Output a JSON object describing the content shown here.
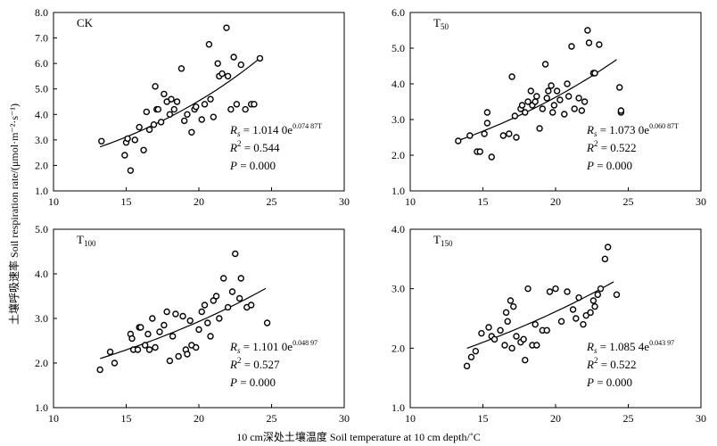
{
  "figure": {
    "ylabel": "土壤呼吸速率 Soil respiration rate/(μmol·m⁻²·s⁻¹)",
    "xlabel": "10 cm深处土壤温度 Soil temperature at 10 cm depth/˚C"
  },
  "chart_data": [
    {
      "type": "scatter",
      "panel": "CK",
      "label_main": "CK",
      "label_sub": "",
      "xlim": [
        10,
        30
      ],
      "ylim": [
        1.0,
        8.0
      ],
      "xticks": [
        10,
        15,
        20,
        25,
        30
      ],
      "yticks": [
        1.0,
        2.0,
        3.0,
        4.0,
        5.0,
        6.0,
        7.0,
        8.0
      ],
      "fit": {
        "a": 1.014,
        "b": 0.07487,
        "x_range": [
          13.2,
          24.2
        ]
      },
      "eq": {
        "coef": "1.014 0e",
        "exp": "0.074 87T",
        "r2": "0.544",
        "p": "0.000"
      },
      "x": [
        13.3,
        14.9,
        15.0,
        15.1,
        15.3,
        15.6,
        15.9,
        16.2,
        16.4,
        16.6,
        16.9,
        17.0,
        17.1,
        17.2,
        17.4,
        17.6,
        17.8,
        18.0,
        18.1,
        18.3,
        18.5,
        18.8,
        19.0,
        19.2,
        19.5,
        19.7,
        19.8,
        20.2,
        20.4,
        20.7,
        20.8,
        21.0,
        21.3,
        21.4,
        21.6,
        21.9,
        22.0,
        22.2,
        22.4,
        22.6,
        22.9,
        23.2,
        23.6,
        23.8,
        24.2
      ],
      "y": [
        2.95,
        2.4,
        2.9,
        3.05,
        1.8,
        3.0,
        3.5,
        2.6,
        4.1,
        3.4,
        3.6,
        5.1,
        4.2,
        4.2,
        3.7,
        4.8,
        4.5,
        4.0,
        4.6,
        4.2,
        4.5,
        5.8,
        3.75,
        4.0,
        3.3,
        4.2,
        4.3,
        3.8,
        4.4,
        6.75,
        4.6,
        3.9,
        6.0,
        5.5,
        5.6,
        7.4,
        5.5,
        4.2,
        6.25,
        4.4,
        5.95,
        4.2,
        4.4,
        4.4,
        6.2
      ]
    },
    {
      "type": "scatter",
      "panel": "T50",
      "label_main": "T",
      "label_sub": "50",
      "xlim": [
        10,
        30
      ],
      "ylim": [
        1.0,
        6.0
      ],
      "xticks": [
        10,
        15,
        20,
        25,
        30
      ],
      "yticks": [
        1.0,
        2.0,
        3.0,
        4.0,
        5.0,
        6.0
      ],
      "fit": {
        "a": 1.073,
        "b": 0.06087,
        "x_range": [
          13.2,
          24.2
        ]
      },
      "eq": {
        "coef": "1.073 0e",
        "exp": "0.060 87T",
        "r2": "0.522",
        "p": "0.000"
      },
      "x": [
        13.3,
        14.1,
        14.6,
        14.8,
        15.1,
        15.3,
        15.3,
        15.6,
        16.4,
        16.8,
        17.0,
        17.2,
        17.3,
        17.6,
        17.7,
        17.9,
        18.1,
        18.3,
        18.4,
        18.6,
        18.7,
        18.9,
        19.1,
        19.3,
        19.4,
        19.5,
        19.7,
        19.8,
        19.9,
        20.1,
        20.3,
        20.6,
        20.8,
        20.9,
        21.1,
        21.3,
        21.6,
        21.8,
        22.0,
        22.2,
        22.3,
        22.6,
        22.7,
        23.0,
        24.4,
        24.5,
        24.5
      ],
      "y": [
        2.4,
        2.55,
        2.1,
        2.1,
        2.6,
        2.9,
        3.2,
        1.95,
        2.55,
        2.6,
        4.2,
        3.1,
        2.5,
        3.3,
        3.4,
        3.2,
        3.5,
        3.8,
        3.4,
        3.5,
        3.65,
        2.75,
        3.3,
        4.55,
        3.6,
        3.8,
        3.95,
        3.2,
        3.4,
        3.8,
        3.55,
        3.15,
        4.0,
        3.65,
        5.05,
        3.3,
        3.6,
        3.25,
        3.5,
        5.5,
        5.15,
        4.3,
        4.3,
        5.1,
        3.9,
        3.2,
        3.25
      ]
    },
    {
      "type": "scatter",
      "panel": "T100",
      "label_main": "T",
      "label_sub": "100",
      "xlim": [
        10,
        30
      ],
      "ylim": [
        1.0,
        5.0
      ],
      "xticks": [
        10,
        15,
        20,
        25,
        30
      ],
      "yticks": [
        1.0,
        2.0,
        3.0,
        4.0,
        5.0
      ],
      "fit": {
        "a": 1.101,
        "b": 0.04897,
        "x_range": [
          13.2,
          24.6
        ]
      },
      "eq": {
        "coef": "1.101 0e",
        "exp": "0.048 97",
        "r2": "0.527",
        "p": "0.000"
      },
      "x": [
        13.2,
        13.9,
        14.2,
        15.3,
        15.4,
        15.5,
        15.8,
        15.9,
        16.0,
        16.3,
        16.5,
        16.6,
        16.8,
        17.0,
        17.3,
        17.6,
        17.8,
        18.0,
        18.2,
        18.4,
        18.6,
        18.9,
        19.1,
        19.2,
        19.4,
        19.5,
        19.8,
        20.0,
        20.2,
        20.4,
        20.6,
        20.8,
        21.0,
        21.2,
        21.4,
        21.7,
        22.0,
        22.3,
        22.5,
        22.8,
        22.9,
        23.3,
        23.6,
        24.7
      ],
      "y": [
        1.85,
        2.25,
        2.0,
        2.65,
        2.55,
        2.3,
        2.3,
        2.8,
        2.8,
        2.4,
        2.65,
        2.3,
        3.0,
        2.35,
        2.7,
        2.85,
        3.15,
        2.05,
        2.6,
        3.1,
        2.15,
        3.05,
        2.3,
        2.2,
        2.95,
        2.4,
        2.35,
        2.75,
        3.15,
        3.3,
        2.9,
        2.6,
        3.4,
        3.5,
        3.0,
        3.9,
        3.25,
        3.6,
        4.45,
        3.45,
        3.9,
        3.25,
        3.3,
        2.9
      ]
    },
    {
      "type": "scatter",
      "panel": "T150",
      "label_main": "T",
      "label_sub": "150",
      "xlim": [
        10,
        30
      ],
      "ylim": [
        1.0,
        4.0
      ],
      "xticks": [
        10,
        15,
        20,
        25,
        30
      ],
      "yticks": [
        1.0,
        2.0,
        3.0,
        4.0
      ],
      "fit": {
        "a": 1.085,
        "b": 0.04397,
        "x_range": [
          13.9,
          24.0
        ]
      },
      "eq": {
        "coef": "1.085 4e",
        "exp": "0.043 97",
        "r2": "0.522",
        "p": "0.000"
      },
      "x": [
        13.9,
        14.2,
        14.5,
        14.9,
        15.4,
        15.6,
        15.8,
        16.2,
        16.5,
        16.6,
        16.7,
        16.9,
        17.0,
        17.1,
        17.3,
        17.6,
        17.8,
        17.9,
        18.1,
        18.4,
        18.6,
        18.7,
        19.1,
        19.4,
        19.6,
        20.0,
        20.4,
        20.8,
        21.2,
        21.4,
        21.6,
        21.9,
        22.1,
        22.4,
        22.6,
        22.7,
        22.9,
        23.1,
        23.4,
        23.6,
        24.2
      ],
      "y": [
        1.7,
        1.85,
        1.95,
        2.25,
        2.35,
        2.2,
        2.15,
        2.3,
        2.05,
        2.6,
        2.45,
        2.8,
        2.0,
        2.7,
        2.2,
        2.1,
        2.15,
        1.8,
        3.0,
        2.05,
        2.4,
        2.05,
        2.3,
        2.3,
        2.95,
        3.0,
        2.45,
        2.95,
        2.65,
        2.5,
        2.85,
        2.4,
        2.55,
        2.6,
        2.8,
        2.7,
        2.9,
        3.0,
        3.5,
        3.7,
        2.9
      ]
    }
  ]
}
